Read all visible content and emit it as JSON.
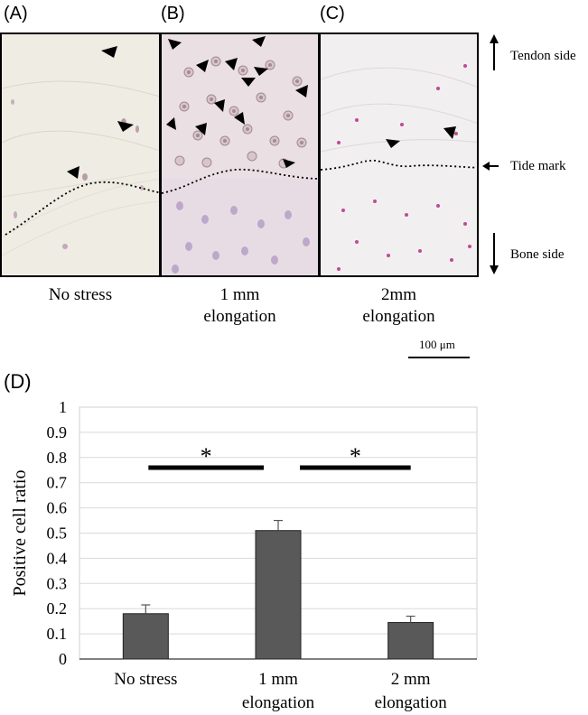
{
  "panels": {
    "a": {
      "letter": "(A)",
      "caption": "No stress"
    },
    "b": {
      "letter": "(B)",
      "caption_line1": "1 mm",
      "caption_line2": "elongation"
    },
    "c": {
      "letter": "(C)",
      "caption_line1": "2mm",
      "caption_line2": "elongation"
    },
    "d": {
      "letter": "(D)"
    }
  },
  "orientation_labels": {
    "tendon": "Tendon side",
    "tide": "Tide mark",
    "bone": "Bone side"
  },
  "scale_bar": "100 μm",
  "chart_data": {
    "type": "bar",
    "categories": [
      [
        "No stress"
      ],
      [
        "1 mm",
        "elongation"
      ],
      [
        "2 mm",
        "elongation"
      ]
    ],
    "values": [
      0.18,
      0.51,
      0.145
    ],
    "errors": [
      0.035,
      0.04,
      0.025
    ],
    "ylabel": "Positive cell ratio",
    "ylim": [
      0,
      1
    ],
    "yticks": [
      "0",
      "0.1",
      "0.2",
      "0.3",
      "0.4",
      "0.5",
      "0.6",
      "0.7",
      "0.8",
      "0.9",
      "1"
    ],
    "significance": [
      {
        "from": 0,
        "to": 1,
        "label": "*"
      },
      {
        "from": 1,
        "to": 2,
        "label": "*"
      }
    ],
    "bar_color": "#595959",
    "grid": true
  }
}
